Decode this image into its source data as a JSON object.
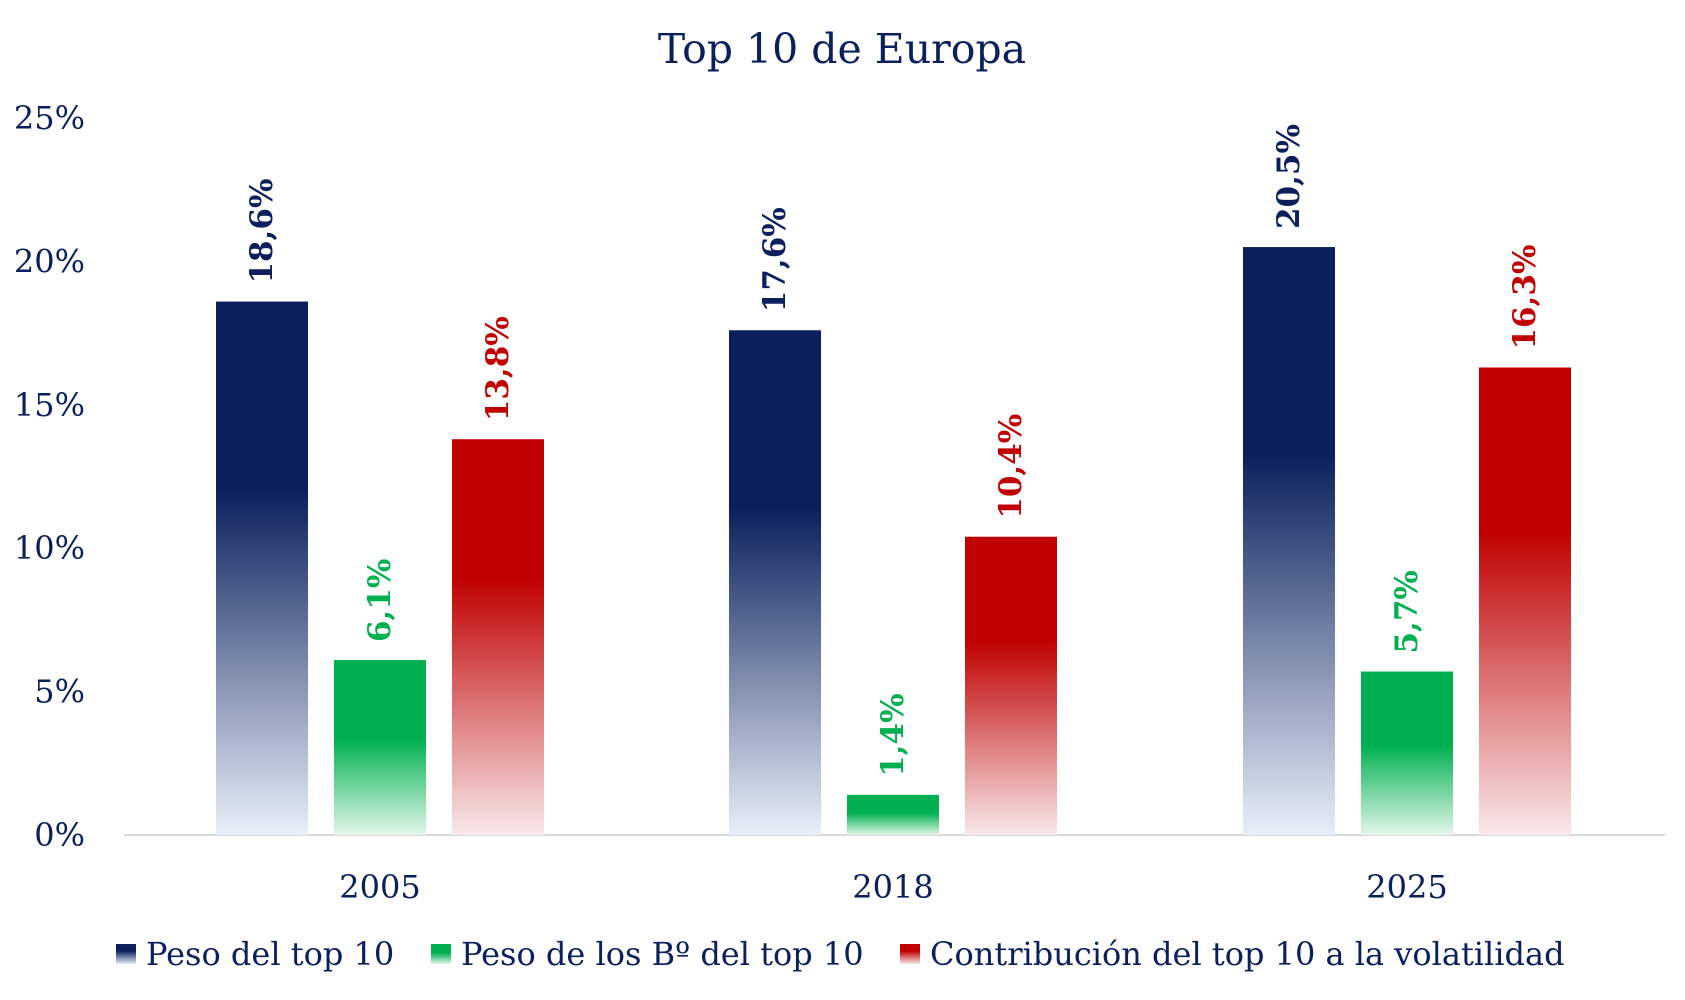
{
  "chart_data": {
    "type": "bar",
    "title": "Top 10 de Europa",
    "categories": [
      "2005",
      "2018",
      "2025"
    ],
    "ylim": [
      0,
      25
    ],
    "yticks": [
      0,
      5,
      10,
      15,
      20,
      25
    ],
    "ytick_labels": [
      "0%",
      "5%",
      "10%",
      "15%",
      "20%",
      "25%"
    ],
    "xlabel": "",
    "ylabel": "",
    "grid": false,
    "legend_position": "bottom",
    "series": [
      {
        "name": "Peso del top 10",
        "color": "#0a1f5c",
        "values": [
          18.6,
          17.6,
          20.5
        ],
        "labels": [
          "18,6%",
          "17,6%",
          "20,5%"
        ]
      },
      {
        "name": "Peso de los Bº del top 10",
        "color": "#00b050",
        "values": [
          6.1,
          1.4,
          5.7
        ],
        "labels": [
          "6,1%",
          "1,4%",
          "5,7%"
        ]
      },
      {
        "name": "Contribución del top 10 a la volatilidad",
        "color": "#c00000",
        "values": [
          13.8,
          10.4,
          16.3
        ],
        "labels": [
          "13,8%",
          "10,4%",
          "16,3%"
        ]
      }
    ]
  }
}
